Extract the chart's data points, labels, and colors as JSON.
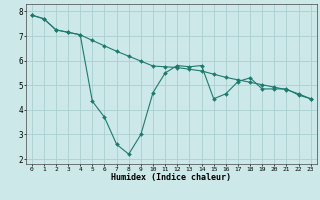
{
  "xlabel": "Humidex (Indice chaleur)",
  "background_color": "#cce8e8",
  "line_color": "#1e7a6e",
  "grid_color": "#aacfcf",
  "xlim": [
    -0.5,
    23.5
  ],
  "ylim": [
    1.8,
    8.3
  ],
  "xticks": [
    0,
    1,
    2,
    3,
    4,
    5,
    6,
    7,
    8,
    9,
    10,
    11,
    12,
    13,
    14,
    15,
    16,
    17,
    18,
    19,
    20,
    21,
    22,
    23
  ],
  "yticks": [
    2,
    3,
    4,
    5,
    6,
    7,
    8
  ],
  "line1_x": [
    0,
    1,
    2,
    3,
    4,
    5,
    6,
    7,
    8,
    9,
    10,
    11,
    12,
    13,
    14,
    15,
    16,
    17,
    18,
    19,
    20,
    21,
    22,
    23
  ],
  "line1_y": [
    7.85,
    7.7,
    7.25,
    7.15,
    7.05,
    4.35,
    3.7,
    2.6,
    2.2,
    3.0,
    4.7,
    5.5,
    5.8,
    5.75,
    5.8,
    4.45,
    4.65,
    5.15,
    5.3,
    4.85,
    4.85,
    4.85,
    4.6,
    4.45
  ],
  "line2_x": [
    0,
    1,
    2,
    3,
    4,
    5,
    6,
    7,
    8,
    9,
    10,
    11,
    12,
    13,
    14,
    15,
    16,
    17,
    18,
    19,
    20,
    21,
    22,
    23
  ],
  "line2_y": [
    7.85,
    7.7,
    7.25,
    7.15,
    7.05,
    6.82,
    6.6,
    6.38,
    6.18,
    5.98,
    5.78,
    5.75,
    5.72,
    5.65,
    5.58,
    5.45,
    5.32,
    5.22,
    5.12,
    5.02,
    4.92,
    4.82,
    4.65,
    4.45
  ]
}
